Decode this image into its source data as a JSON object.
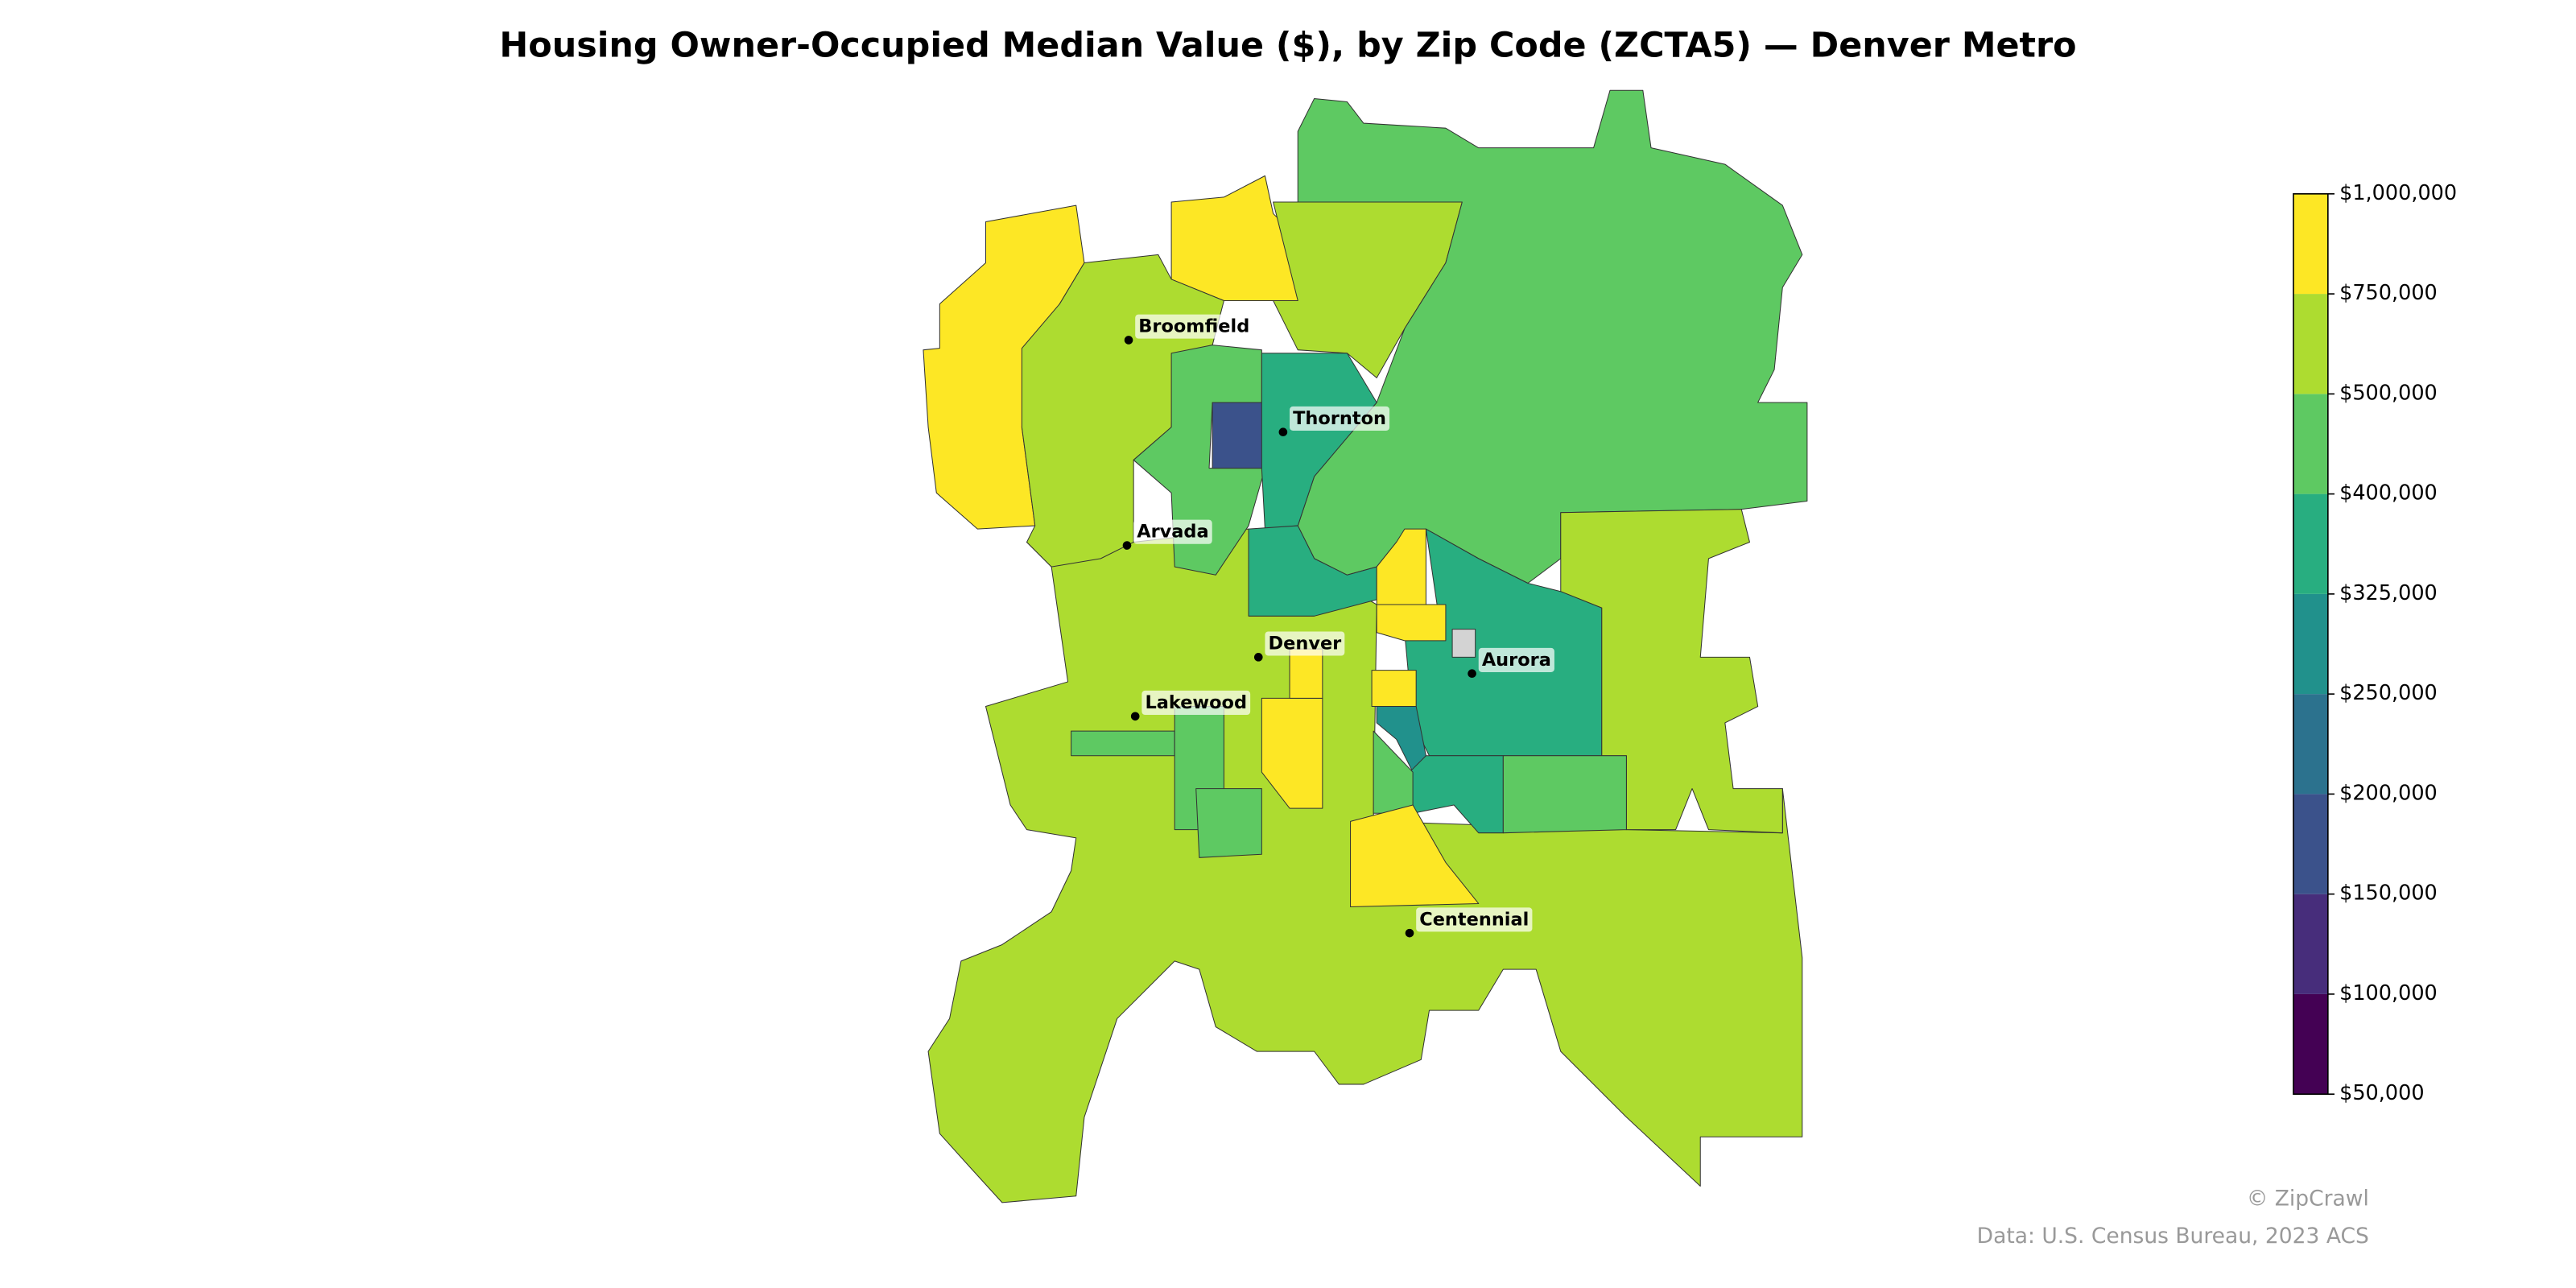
{
  "chart_data": {
    "type": "choropleth",
    "title": "Housing Owner-Occupied Median Value ($), by Zip Code (ZCTA5) — Denver Metro",
    "values": [
      600000,
      850000,
      900000,
      600000,
      450000,
      600000,
      450000,
      190000,
      360000,
      360000,
      850000,
      360000,
      600000,
      850000,
      850000,
      280000,
      360000,
      450000,
      450000,
      null,
      850000,
      850000,
      450000,
      450000,
      450000,
      850000
    ],
    "colorbar_ticks": [
      {
        "value": 50000,
        "label": "$50,000"
      },
      {
        "value": 100000,
        "label": "$100,000"
      },
      {
        "value": 150000,
        "label": "$150,000"
      },
      {
        "value": 200000,
        "label": "$200,000"
      },
      {
        "value": 250000,
        "label": "$250,000"
      },
      {
        "value": 325000,
        "label": "$325,000"
      },
      {
        "value": 400000,
        "label": "$400,000"
      },
      {
        "value": 500000,
        "label": "$500,000"
      },
      {
        "value": 750000,
        "label": "$750,000"
      },
      {
        "value": 1000000,
        "label": "$1,000,000"
      }
    ],
    "colors": [
      "#440154",
      "#472d7b",
      "#3b528b",
      "#2c728e",
      "#21918c",
      "#28ae80",
      "#5ec962",
      "#addc30",
      "#fde725"
    ],
    "missing_color": "#d3d3d3",
    "cities": [
      "Broomfield",
      "Thornton",
      "Arvada",
      "Denver",
      "Aurora",
      "Lakewood",
      "Centennial"
    ],
    "credit": "© ZipCrawl",
    "source": "Data: U.S. Census Bureau, 2023 ACS"
  }
}
